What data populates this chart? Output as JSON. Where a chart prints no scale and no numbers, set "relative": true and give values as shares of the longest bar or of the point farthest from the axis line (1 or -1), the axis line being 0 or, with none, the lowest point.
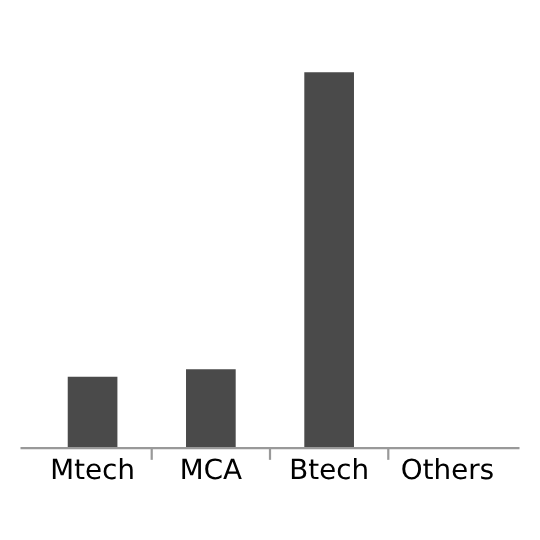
{
  "chart_data": {
    "type": "bar",
    "relative": true,
    "categories": [
      "Mtech",
      "MCA",
      "Btech",
      "Others"
    ],
    "values": [
      0.19,
      0.21,
      1,
      0
    ],
    "color": "#4a4a4a",
    "grid": false,
    "legend": false
  }
}
